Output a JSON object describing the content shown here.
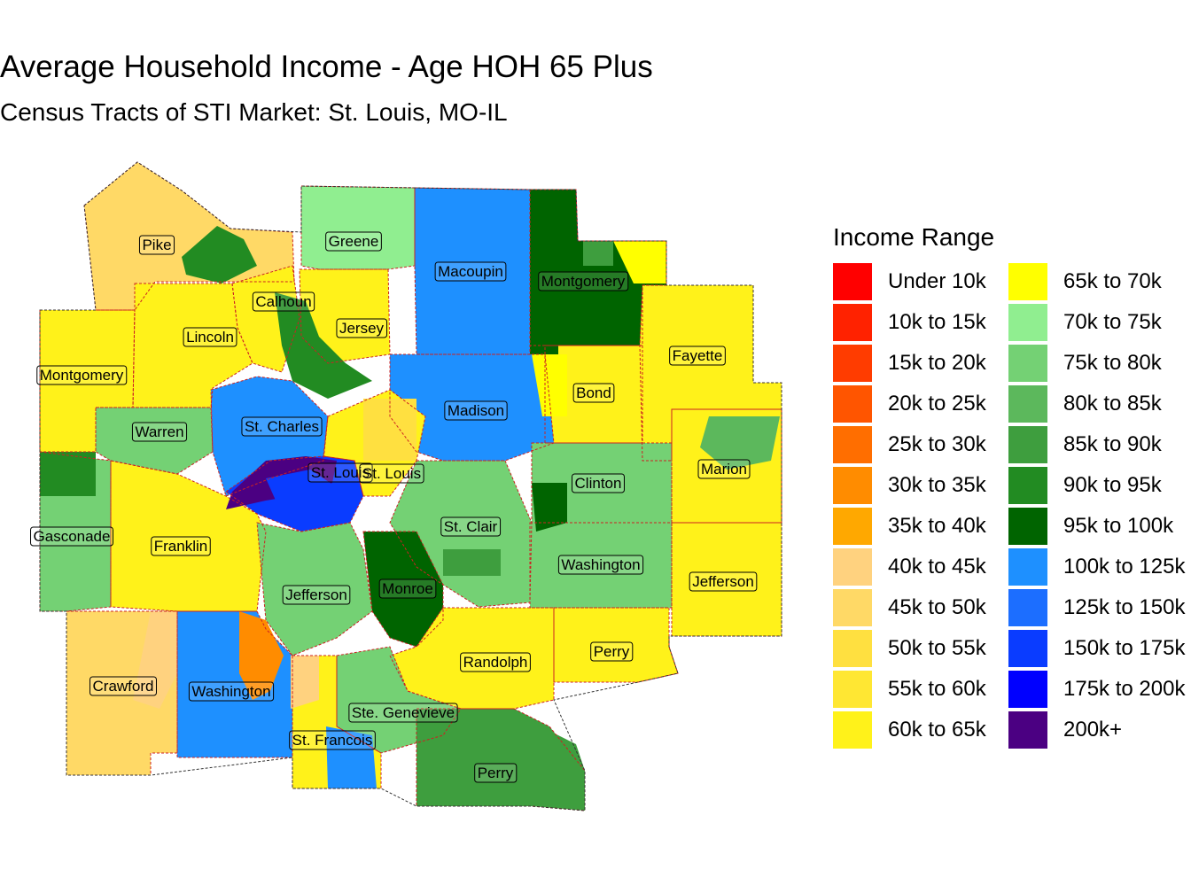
{
  "title": "Average Household Income - Age HOH 65 Plus",
  "subtitle": "Census Tracts of STI Market: St. Louis, MO-IL",
  "legend": {
    "title": "Income Range",
    "items": [
      {
        "label": "Under 10k",
        "color": "#FF0000"
      },
      {
        "label": "10k to 15k",
        "color": "#FF2200"
      },
      {
        "label": "15k to 20k",
        "color": "#FF3C00"
      },
      {
        "label": "20k to 25k",
        "color": "#FF5500"
      },
      {
        "label": "25k to 30k",
        "color": "#FF6E00"
      },
      {
        "label": "30k to 35k",
        "color": "#FF8C00"
      },
      {
        "label": "35k to 40k",
        "color": "#FFA800"
      },
      {
        "label": "40k to 45k",
        "color": "#FFD27F"
      },
      {
        "label": "45k to 50k",
        "color": "#FFD966"
      },
      {
        "label": "50k to 55k",
        "color": "#FFE040"
      },
      {
        "label": "55k to 60k",
        "color": "#FFE733"
      },
      {
        "label": "60k to 65k",
        "color": "#FFF21A"
      },
      {
        "label": "65k to 70k",
        "color": "#FFFF00"
      },
      {
        "label": "70k to 75k",
        "color": "#90EE90"
      },
      {
        "label": "75k to 80k",
        "color": "#74D174"
      },
      {
        "label": "80k to 85k",
        "color": "#5CB85C"
      },
      {
        "label": "85k to 90k",
        "color": "#3E9E3E"
      },
      {
        "label": "90k to 95k",
        "color": "#228B22"
      },
      {
        "label": "95k to 100k",
        "color": "#006400"
      },
      {
        "label": "100k to 125k",
        "color": "#1E90FF"
      },
      {
        "label": "125k to 150k",
        "color": "#1C6EFF"
      },
      {
        "label": "150k to 175k",
        "color": "#0A3CFF"
      },
      {
        "label": "175k to 200k",
        "color": "#0000FF"
      },
      {
        "label": "200k+",
        "color": "#4B0082"
      }
    ]
  },
  "counties": [
    {
      "name": "Pike",
      "income_class": "45k to 50k"
    },
    {
      "name": "Greene",
      "income_class": "70k to 75k"
    },
    {
      "name": "Macoupin",
      "income_class": "100k to 125k"
    },
    {
      "name": "Montgomery",
      "income_class": "95k to 100k"
    },
    {
      "name": "Calhoun",
      "income_class": "60k to 65k"
    },
    {
      "name": "Jersey",
      "income_class": "60k to 65k"
    },
    {
      "name": "Lincoln",
      "income_class": "60k to 65k"
    },
    {
      "name": "Fayette",
      "income_class": "60k to 65k"
    },
    {
      "name": "Montgomery",
      "income_class": "60k to 65k"
    },
    {
      "name": "Bond",
      "income_class": "60k to 65k"
    },
    {
      "name": "Madison",
      "income_class": "100k to 125k"
    },
    {
      "name": "Warren",
      "income_class": "75k to 80k"
    },
    {
      "name": "St. Charles",
      "income_class": "100k to 125k"
    },
    {
      "name": "Marion",
      "income_class": "60k to 65k"
    },
    {
      "name": "St. Louis",
      "income_class": "150k to 175k"
    },
    {
      "name": "St. Louis",
      "income_class": "60k to 65k"
    },
    {
      "name": "Clinton",
      "income_class": "75k to 80k"
    },
    {
      "name": "Gasconade",
      "income_class": "75k to 80k"
    },
    {
      "name": "Franklin",
      "income_class": "60k to 65k"
    },
    {
      "name": "St. Clair",
      "income_class": "75k to 80k"
    },
    {
      "name": "Washington",
      "income_class": "75k to 80k"
    },
    {
      "name": "Jefferson",
      "income_class": "75k to 80k"
    },
    {
      "name": "Monroe",
      "income_class": "95k to 100k"
    },
    {
      "name": "Jefferson",
      "income_class": "60k to 65k"
    },
    {
      "name": "Perry",
      "income_class": "60k to 65k"
    },
    {
      "name": "Randolph",
      "income_class": "60k to 65k"
    },
    {
      "name": "Crawford",
      "income_class": "45k to 50k"
    },
    {
      "name": "Washington",
      "income_class": "100k to 125k"
    },
    {
      "name": "Ste. Genevieve",
      "income_class": "75k to 80k"
    },
    {
      "name": "St. Francois",
      "income_class": "60k to 65k"
    },
    {
      "name": "Perry",
      "income_class": "85k to 90k"
    }
  ]
}
